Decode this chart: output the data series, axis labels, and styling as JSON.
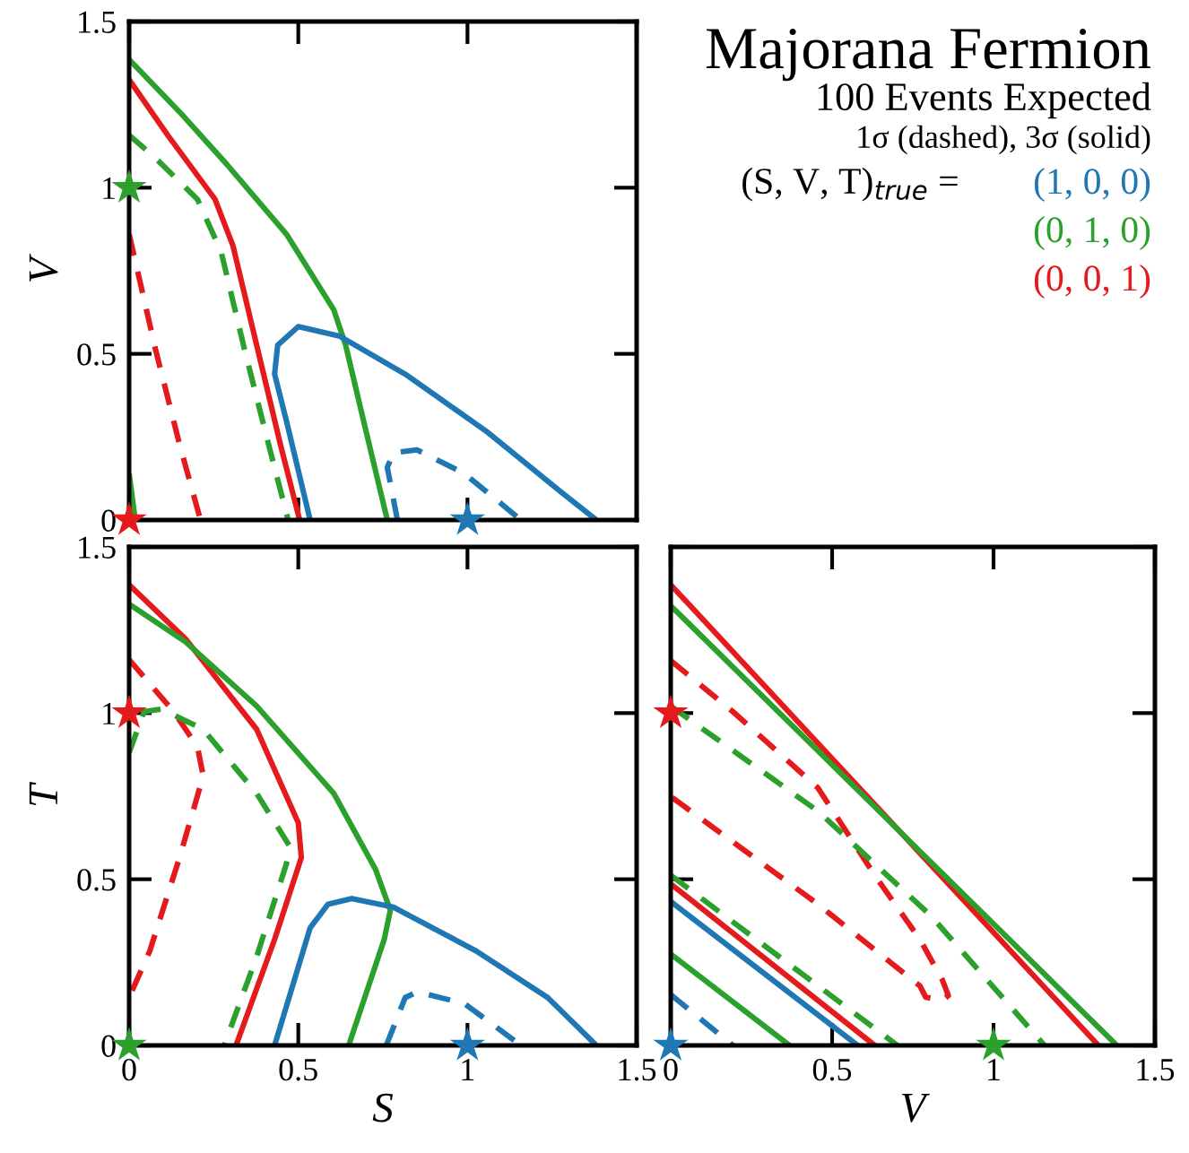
{
  "chart_data": [
    {
      "type": "line",
      "ylabel": "V",
      "xlim": [
        0,
        1.5
      ],
      "ylim": [
        0,
        1.5
      ],
      "xticks": [
        0,
        0.5,
        1,
        1.5
      ],
      "yticks": [
        0,
        0.5,
        1,
        1.5
      ],
      "tick_labels": "y",
      "legend": "right",
      "series": [
        {
          "type": "line",
          "color": "#2ca02c",
          "line_style": "solid",
          "x": [
            0,
            0.149,
            0.289,
            0.465,
            0.605,
            0.64,
            0.693,
            0.763
          ],
          "values": [
            1.386,
            1.228,
            1.07,
            0.86,
            0.632,
            0.526,
            0.298,
            0
          ]
        },
        {
          "type": "line",
          "color": "#2ca02c",
          "line_style": "solid",
          "x": [
            0,
            0.018
          ],
          "values": [
            0.14,
            0
          ]
        },
        {
          "type": "line",
          "color": "#e41a1c",
          "line_style": "solid",
          "x": [
            0,
            0.114,
            0.254,
            0.307,
            0.377,
            0.447,
            0.504
          ],
          "values": [
            1.325,
            1.158,
            0.965,
            0.825,
            0.526,
            0.228,
            0
          ]
        },
        {
          "type": "line",
          "color": "#2ca02c",
          "line_style": "dashed",
          "x": [
            0,
            0.079,
            0.202,
            0.272,
            0.342,
            0.412,
            0.47
          ],
          "values": [
            1.158,
            1.088,
            0.965,
            0.807,
            0.509,
            0.228,
            0
          ]
        },
        {
          "type": "line",
          "color": "#e41a1c",
          "line_style": "dashed",
          "x": [
            0,
            0.079,
            0.149,
            0.211
          ],
          "values": [
            0.86,
            0.509,
            0.228,
            0
          ]
        },
        {
          "type": "line",
          "color": "#1f77b4",
          "line_style": "solid",
          "x": [
            0.535,
            0.465,
            0.43,
            0.439,
            0.5,
            0.623,
            0.816,
            1.061,
            1.272,
            1.381
          ],
          "values": [
            0,
            0.298,
            0.439,
            0.526,
            0.582,
            0.553,
            0.439,
            0.263,
            0.088,
            0
          ]
        },
        {
          "type": "line",
          "color": "#1f77b4",
          "line_style": "dashed",
          "x": [
            0.793,
            0.763,
            0.781,
            0.851,
            0.991,
            1.158
          ],
          "values": [
            0,
            0.158,
            0.202,
            0.211,
            0.14,
            0
          ]
        },
        {
          "type": "scatter",
          "marker": "star",
          "name": "(1, 0, 0)",
          "color": "#1f77b4",
          "x": [
            1
          ],
          "values": [
            0
          ]
        },
        {
          "type": "scatter",
          "marker": "star",
          "name": "(0, 1, 0)",
          "color": "#2ca02c",
          "x": [
            0
          ],
          "values": [
            1
          ]
        },
        {
          "type": "scatter",
          "marker": "star",
          "name": "(0, 0, 1)",
          "color": "#e41a1c",
          "x": [
            0
          ],
          "values": [
            0
          ]
        }
      ]
    },
    {
      "type": "line",
      "xlabel": "S",
      "ylabel": "T",
      "xlim": [
        0,
        1.5
      ],
      "ylim": [
        0,
        1.5
      ],
      "xticks": [
        0,
        0.5,
        1,
        1.5
      ],
      "yticks": [
        0,
        0.5,
        1,
        1.5
      ],
      "series": [
        {
          "type": "line",
          "color": "#e41a1c",
          "line_style": "solid",
          "x": [
            0,
            0.167,
            0.377,
            0.5,
            0.509,
            0.43,
            0.316
          ],
          "values": [
            1.386,
            1.223,
            0.951,
            0.67,
            0.565,
            0.319,
            0
          ]
        },
        {
          "type": "line",
          "color": "#2ca02c",
          "line_style": "solid",
          "x": [
            0,
            0.167,
            0.377,
            0.605,
            0.728,
            0.772,
            0.754,
            0.649
          ],
          "values": [
            1.328,
            1.214,
            1.021,
            0.758,
            0.53,
            0.407,
            0.319,
            0
          ]
        },
        {
          "type": "line",
          "color": "#e41a1c",
          "line_style": "dashed",
          "x": [
            0,
            0.132,
            0.202,
            0.219,
            0.149,
            0.061,
            0
          ],
          "values": [
            1.161,
            1.004,
            0.898,
            0.811,
            0.565,
            0.284,
            0.144
          ]
        },
        {
          "type": "line",
          "color": "#2ca02c",
          "line_style": "dashed",
          "x": [
            0,
            0.044,
            0.096,
            0.219,
            0.377,
            0.474,
            0.465,
            0.377,
            0.281
          ],
          "values": [
            0.881,
            1.004,
            1.012,
            0.951,
            0.758,
            0.6,
            0.547,
            0.267,
            0
          ]
        },
        {
          "type": "line",
          "color": "#1f77b4",
          "line_style": "solid",
          "x": [
            0.43,
            0.535,
            0.588,
            0.658,
            0.781,
            1.026,
            1.237,
            1.381
          ],
          "values": [
            0,
            0.354,
            0.425,
            0.442,
            0.416,
            0.284,
            0.144,
            0
          ]
        },
        {
          "type": "line",
          "color": "#1f77b4",
          "line_style": "dashed",
          "x": [
            0.76,
            0.816,
            0.851,
            0.991,
            1.158
          ],
          "values": [
            0,
            0.144,
            0.161,
            0.126,
            0
          ]
        },
        {
          "type": "scatter",
          "marker": "star",
          "color": "#e41a1c",
          "x": [
            0
          ],
          "values": [
            1
          ]
        },
        {
          "type": "scatter",
          "marker": "star",
          "color": "#2ca02c",
          "x": [
            0
          ],
          "values": [
            0
          ]
        },
        {
          "type": "scatter",
          "marker": "star",
          "color": "#1f77b4",
          "x": [
            1
          ],
          "values": [
            0
          ]
        }
      ]
    },
    {
      "type": "line",
      "xlabel": "V",
      "xlim": [
        0,
        1.5
      ],
      "ylim": [
        0,
        1.5
      ],
      "xticks": [
        0,
        0.5,
        1,
        1.5
      ],
      "yticks": [
        0,
        0.5,
        1,
        1.5
      ],
      "tick_labels": "x",
      "series": [
        {
          "type": "line",
          "color": "#e41a1c",
          "line_style": "solid",
          "x": [
            0,
            1.325
          ],
          "values": [
            1.386,
            0
          ]
        },
        {
          "type": "line",
          "color": "#2ca02c",
          "line_style": "solid",
          "x": [
            0,
            1.382
          ],
          "values": [
            1.323,
            0
          ]
        },
        {
          "type": "line",
          "color": "#e41a1c",
          "line_style": "dashed",
          "x": [
            0,
            0.193,
            0.456,
            0.632,
            0.772,
            0.842,
            0.86,
            0.84,
            0.79,
            0.772,
            0.456,
            0
          ],
          "values": [
            1.158,
            1.004,
            0.775,
            0.512,
            0.319,
            0.196,
            0.15,
            0.135,
            0.145,
            0.179,
            0.425,
            0.749
          ]
        },
        {
          "type": "line",
          "color": "#2ca02c",
          "line_style": "dashed",
          "x": [
            0,
            0.456,
            0.807,
            1.158
          ],
          "values": [
            1.021,
            0.705,
            0.389,
            0
          ]
        },
        {
          "type": "line",
          "color": "#2ca02c",
          "line_style": "dashed",
          "x": [
            0,
            0.702
          ],
          "values": [
            0.512,
            0
          ]
        },
        {
          "type": "line",
          "color": "#e41a1c",
          "line_style": "solid",
          "x": [
            0,
            0.632
          ],
          "values": [
            0.486,
            0
          ]
        },
        {
          "type": "line",
          "color": "#1f77b4",
          "line_style": "solid",
          "x": [
            0,
            0.579
          ],
          "values": [
            0.433,
            0
          ]
        },
        {
          "type": "line",
          "color": "#2ca02c",
          "line_style": "solid",
          "x": [
            0,
            0.368
          ],
          "values": [
            0.275,
            0
          ]
        },
        {
          "type": "line",
          "color": "#1f77b4",
          "line_style": "dashed",
          "x": [
            0,
            0.193
          ],
          "values": [
            0.153,
            0
          ]
        },
        {
          "type": "scatter",
          "marker": "star",
          "color": "#e41a1c",
          "x": [
            0
          ],
          "values": [
            1
          ]
        },
        {
          "type": "scatter",
          "marker": "star",
          "color": "#1f77b4",
          "x": [
            0
          ],
          "values": [
            0
          ]
        },
        {
          "type": "scatter",
          "marker": "star",
          "color": "#2ca02c",
          "x": [
            1
          ],
          "values": [
            0
          ]
        }
      ]
    },
    {
      "type": "other",
      "title": "Majorana Fermion",
      "subtitle": "100 Events Expected",
      "annotations": [
        "1σ (dashed), 3σ (solid)",
        "(S, V, T)$_{true}$ ="
      ]
    }
  ]
}
